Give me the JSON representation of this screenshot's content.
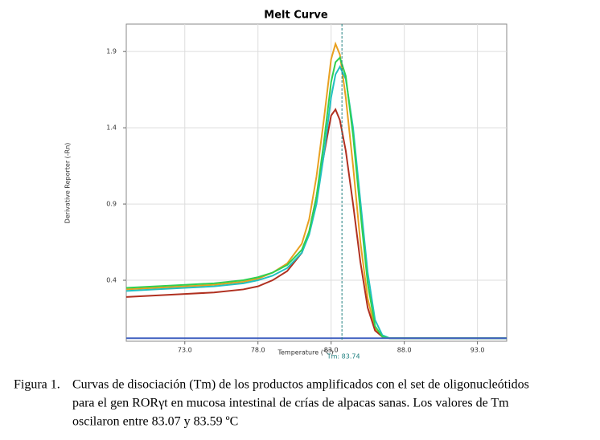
{
  "chart_data": {
    "type": "line",
    "title": "Melt Curve",
    "x_label": "Temperature (°C)",
    "y_label": "Derivative Reporter (-Rn)",
    "annotation": {
      "text": "Tm: 83.74",
      "x": 83.74
    },
    "x": [
      69,
      71,
      73,
      75,
      77,
      78,
      79,
      80,
      81,
      81.5,
      82,
      82.5,
      83,
      83.3,
      83.6,
      84,
      84.5,
      85,
      85.5,
      86,
      86.5,
      87,
      88,
      90,
      95
    ],
    "series": [
      {
        "name": null,
        "color": "#e8a020",
        "values": [
          0.34,
          0.35,
          0.36,
          0.37,
          0.39,
          0.41,
          0.45,
          0.51,
          0.64,
          0.8,
          1.08,
          1.45,
          1.85,
          1.95,
          1.88,
          1.6,
          1.15,
          0.65,
          0.28,
          0.08,
          0.03,
          0.02,
          0.02,
          0.02,
          0.02
        ]
      },
      {
        "name": null,
        "color": "#b03020",
        "values": [
          0.29,
          0.3,
          0.31,
          0.32,
          0.34,
          0.36,
          0.4,
          0.46,
          0.58,
          0.72,
          0.95,
          1.22,
          1.48,
          1.52,
          1.45,
          1.25,
          0.9,
          0.52,
          0.22,
          0.07,
          0.03,
          0.02,
          0.02,
          0.02,
          0.02
        ]
      },
      {
        "name": null,
        "color": "#20c0c0",
        "values": [
          0.33,
          0.34,
          0.35,
          0.36,
          0.38,
          0.4,
          0.43,
          0.48,
          0.58,
          0.7,
          0.9,
          1.22,
          1.6,
          1.75,
          1.8,
          1.72,
          1.4,
          0.92,
          0.45,
          0.14,
          0.04,
          0.02,
          0.02,
          0.02,
          0.02
        ]
      },
      {
        "name": null,
        "color": "#30d050",
        "values": [
          0.35,
          0.36,
          0.37,
          0.38,
          0.4,
          0.42,
          0.45,
          0.5,
          0.6,
          0.72,
          0.95,
          1.3,
          1.7,
          1.83,
          1.86,
          1.74,
          1.35,
          0.85,
          0.38,
          0.1,
          0.03,
          0.02,
          0.02,
          0.02,
          0.02
        ]
      },
      {
        "name": null,
        "color": "#4060c0",
        "values": [
          0.02,
          0.02,
          0.02,
          0.02,
          0.02,
          0.02,
          0.02,
          0.02,
          0.02,
          0.02,
          0.02,
          0.02,
          0.02,
          0.02,
          0.02,
          0.02,
          0.02,
          0.02,
          0.02,
          0.02,
          0.02,
          0.02,
          0.02,
          0.02,
          0.02
        ]
      }
    ],
    "xlim": [
      69,
      95
    ],
    "xticks": [
      {
        "value": 73,
        "label": "73.0"
      },
      {
        "value": 78,
        "label": "78.0"
      },
      {
        "value": 83,
        "label": "83.0"
      },
      {
        "value": 88,
        "label": "88.0"
      },
      {
        "value": 93,
        "label": "93.0"
      }
    ],
    "ylim": [
      0,
      2.08
    ],
    "yticks": [
      0.4,
      0.9,
      1.4,
      1.9
    ],
    "grid": true
  },
  "caption": {
    "label": "Figura 1.",
    "lines": [
      "Curvas de disociación (Tm) de los productos amplificados con el set de oligonucleótidos",
      "para el gen RORγt en mucosa intestinal de crías de alpacas sanas. Los valores de Tm",
      "oscilaron entre 83.07 y 83.59 ºC"
    ]
  }
}
